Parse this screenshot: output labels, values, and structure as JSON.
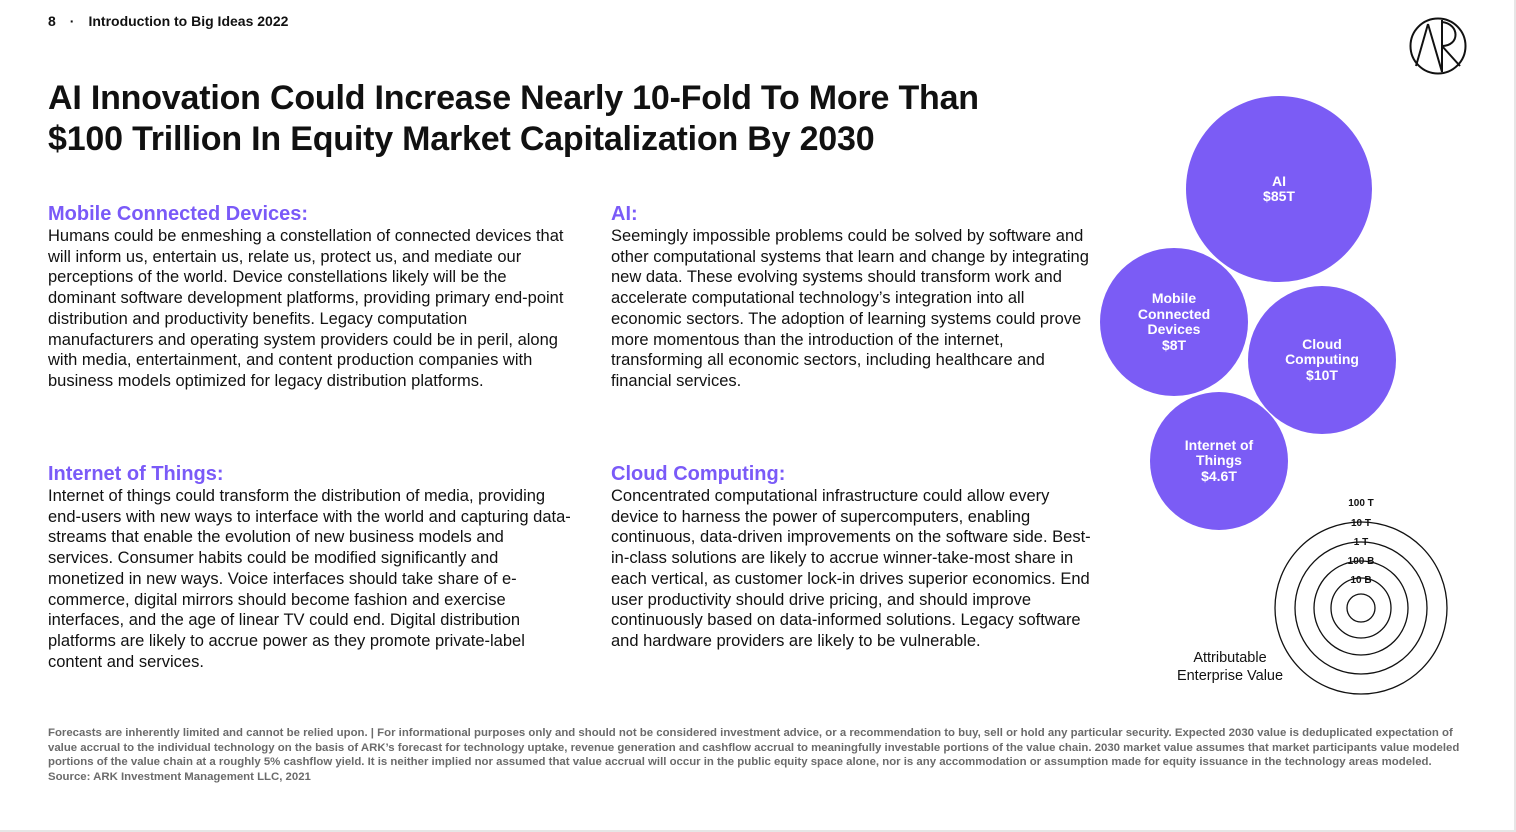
{
  "header": {
    "page_number": "8",
    "separator": "·",
    "doc_title": "Introduction to Big Ideas 2022"
  },
  "title": "AI Innovation Could Increase Nearly 10-Fold To More Than\n$100 Trillion In Equity Market Capitalization By 2030",
  "sections": {
    "mobile": {
      "heading": "Mobile Connected Devices:",
      "body": "Humans could be enmeshing a constellation of connected devices that will inform us, entertain us, relate us, protect us, and mediate our perceptions of the world. Device constellations likely will be the dominant software development platforms, providing primary end-point distribution and productivity benefits. Legacy computation manufacturers and operating system providers could be in peril, along with media, entertainment, and content production companies with business models optimized for legacy distribution platforms."
    },
    "ai": {
      "heading": "AI:",
      "body": "Seemingly impossible problems could be solved by software and other computational systems that learn and change by integrating new data.  These evolving systems should transform work and accelerate computational technology’s integration into all economic sectors. The adoption of learning systems could prove more momentous than the introduction of the internet, transforming all economic sectors, including healthcare and financial services."
    },
    "iot": {
      "heading": "Internet of Things:",
      "body": "Internet of things could transform the distribution of media, providing end-users with new ways to interface with the world and capturing data-streams that enable the evolution of new business models and services. Consumer habits could be modified significantly and monetized in new ways. Voice interfaces should take share of e-commerce, digital mirrors should become fashion and exercise interfaces, and the age of linear TV could end. Digital distribution platforms are likely to accrue power as they promote private-label content and services."
    },
    "cloud": {
      "heading": "Cloud Computing:",
      "body": "Concentrated computational infrastructure could allow every device to harness the power of supercomputers, enabling continuous, data-driven improvements on the software side. Best-in-class solutions are likely to accrue winner-take-most share in each vertical, as customer lock-in drives superior economics. End user productivity should drive pricing, and should improve continuously based on data-informed solutions. Legacy software and hardware providers are likely to be vulnerable."
    }
  },
  "bubbles": [
    {
      "label": "AI\n$85T",
      "value_trillions": 85
    },
    {
      "label": "Mobile\nConnected\nDevices\n$8T",
      "value_trillions": 8
    },
    {
      "label": "Cloud\nComputing\n$10T",
      "value_trillions": 10
    },
    {
      "label": "Internet of\nThings\n$4.6T",
      "value_trillions": 4.6
    }
  ],
  "bubble_color": "#7b5cf5",
  "legend": {
    "rings": [
      "100 T",
      "10 T",
      "1 T",
      "100 B",
      "10 B"
    ],
    "caption": "Attributable\nEnterprise Value"
  },
  "footer": {
    "disclaimer": "Forecasts are inherently limited and cannot be relied upon. | For informational purposes only and should not be considered investment advice, or a recommendation to buy, sell or hold any particular security. Expected 2030 value is deduplicated expectation of value accrual to the individual technology on the basis of ARK’s forecast for technology uptake, revenue generation and cashflow accrual to meaningfully investable portions of the value chain. 2030 market value assumes that market participants value modeled portions of the value chain at a  roughly 5% cashflow yield. It is neither implied nor assumed that value accrual will occur in the public equity space alone, nor is any accommodation or assumption made for equity issuance in the technology areas modeled.",
    "source": "Source: ARK Investment Management LLC, 2021"
  }
}
